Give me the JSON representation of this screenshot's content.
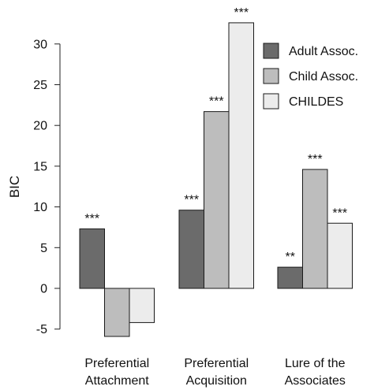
{
  "chart_data": {
    "type": "bar",
    "title": "",
    "xlabel": "",
    "ylabel": "BIC",
    "ylim": [
      -6,
      34
    ],
    "yticks": [
      -5,
      0,
      5,
      10,
      15,
      20,
      25,
      30
    ],
    "grid": false,
    "legend_position": "top-right",
    "categories": [
      [
        "Preferential",
        "Attachment"
      ],
      [
        "Preferential",
        "Acquisition"
      ],
      [
        "Lure of the",
        "Associates"
      ]
    ],
    "series": [
      {
        "name": "Adult Assoc.",
        "color": "#6b6b6b",
        "values": [
          7.3,
          9.6,
          2.6
        ],
        "significance": [
          "***",
          "***",
          "**"
        ]
      },
      {
        "name": "Child Assoc.",
        "color": "#bdbdbd",
        "values": [
          -5.9,
          21.7,
          14.6
        ],
        "significance": [
          "",
          "***",
          "***"
        ]
      },
      {
        "name": "CHILDES",
        "color": "#ececec",
        "values": [
          -4.2,
          32.6,
          8.0
        ],
        "significance": [
          "",
          "***",
          "***"
        ]
      }
    ]
  }
}
